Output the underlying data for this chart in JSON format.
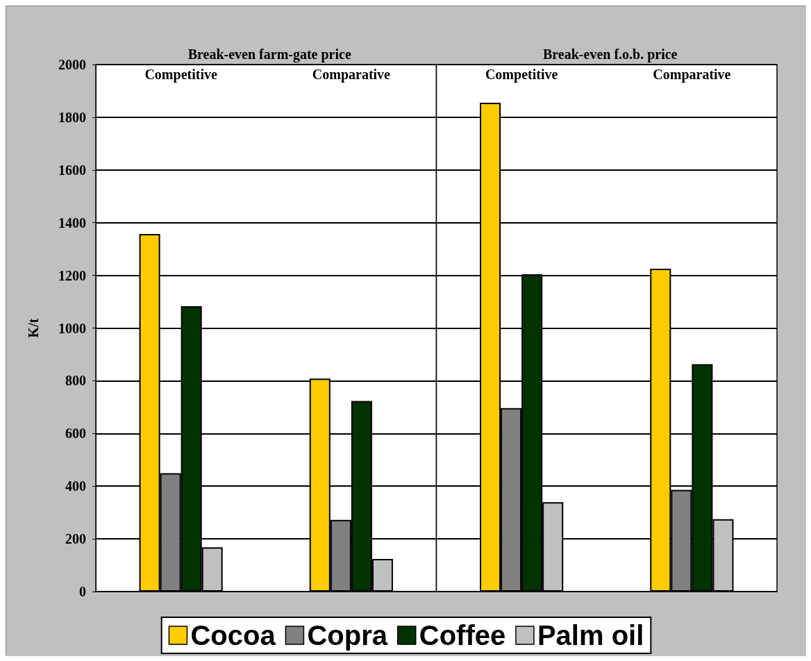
{
  "chart_data": [
    {
      "type": "bar",
      "title": "Break-even farm-gate price",
      "ylabel": "K/t",
      "categories": [
        "Competitive",
        "Comparative"
      ],
      "ylim": [
        0,
        2000
      ],
      "yticks": [
        0,
        200,
        400,
        600,
        800,
        1000,
        1200,
        1400,
        1600,
        1800,
        2000
      ],
      "grid": "y",
      "legend": "bottom",
      "series": [
        {
          "name": "Cocoa",
          "color": "#ffcc00",
          "values": [
            1357,
            808
          ]
        },
        {
          "name": "Copra",
          "color": "#808080",
          "values": [
            449,
            272
          ]
        },
        {
          "name": "Coffee",
          "color": "#003300",
          "values": [
            1083,
            723
          ]
        },
        {
          "name": "Palm oil",
          "color": "#c0c0c0",
          "values": [
            168,
            124
          ]
        }
      ]
    },
    {
      "type": "bar",
      "title": "Break-even f.o.b. price",
      "categories": [
        "Competitive",
        "Comparative"
      ],
      "ylim": [
        0,
        2000
      ],
      "yticks": [
        0,
        200,
        400,
        600,
        800,
        1000,
        1200,
        1400,
        1600,
        1800,
        2000
      ],
      "grid": "y",
      "tick_labels": "x",
      "series": [
        {
          "name": "Cocoa",
          "color": "#ffcc00",
          "values": [
            1855,
            1225
          ]
        },
        {
          "name": "Copra",
          "color": "#808080",
          "values": [
            696,
            386
          ]
        },
        {
          "name": "Coffee",
          "color": "#003300",
          "values": [
            1204,
            863
          ]
        },
        {
          "name": "Palm oil",
          "color": "#c0c0c0",
          "values": [
            339,
            275
          ]
        }
      ]
    }
  ]
}
